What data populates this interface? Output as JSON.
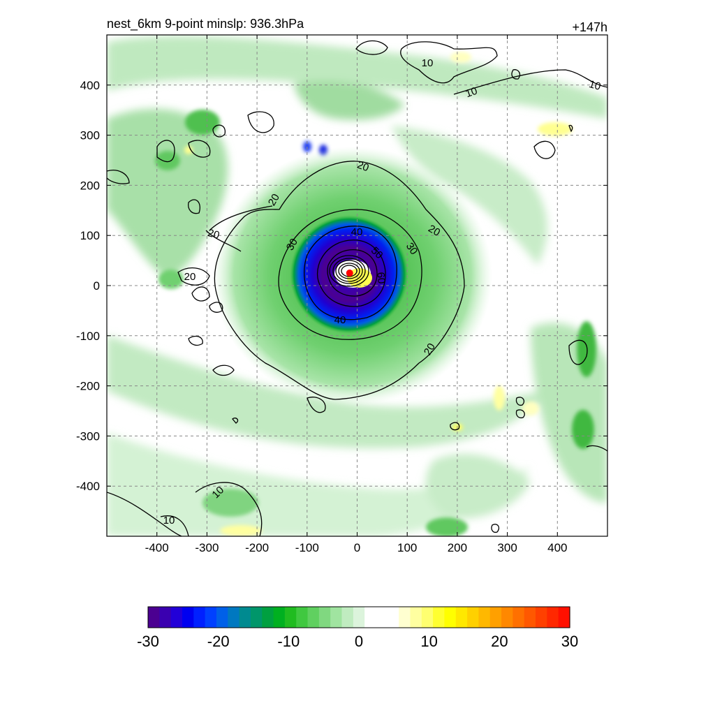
{
  "chart_data": {
    "type": "heatmap",
    "title": "nest_6km  9-point minslp: 936.3hPa",
    "time_label": "+147h",
    "x_axis": {
      "range": [
        -500,
        500
      ],
      "ticks": [
        -400,
        -300,
        -200,
        -100,
        0,
        100,
        200,
        300,
        400
      ]
    },
    "y_axis": {
      "range": [
        -500,
        500
      ],
      "ticks": [
        400,
        300,
        200,
        100,
        0,
        -100,
        -200,
        -300,
        -400
      ]
    },
    "grid": "dashed",
    "center_marker": {
      "x": -15,
      "y": 25,
      "color": "#ff0000"
    },
    "colorbar": {
      "min": -30,
      "max": 30,
      "tick_labels": [
        "-30",
        "-20",
        "-10",
        "0",
        "10",
        "20",
        "30"
      ],
      "colors": [
        "#4b0091",
        "#3a00b0",
        "#2200d8",
        "#0000f0",
        "#0020ff",
        "#0040ff",
        "#0060e8",
        "#0078c0",
        "#008a90",
        "#00966a",
        "#00a040",
        "#00b020",
        "#20bc20",
        "#40c840",
        "#60d060",
        "#80d880",
        "#a0e4a0",
        "#c0ecc0",
        "#dcf4dc",
        "#ffffff",
        "#ffffff",
        "#ffffff",
        "#ffffd0",
        "#ffffa0",
        "#ffff70",
        "#ffff30",
        "#ffff00",
        "#ffe800",
        "#ffd000",
        "#ffb800",
        "#ffa000",
        "#ff8800",
        "#ff7000",
        "#ff5800",
        "#ff4000",
        "#ff2800",
        "#ff1000"
      ]
    },
    "contours": [
      {
        "level": 10,
        "labels": [
          "10",
          "10",
          "10",
          "10",
          "10"
        ]
      },
      {
        "level": 20,
        "labels": [
          "20",
          "20",
          "20",
          "20",
          "20",
          "20"
        ]
      },
      {
        "level": 30,
        "labels": [
          "30",
          "30"
        ]
      },
      {
        "level": 40,
        "labels": [
          "40",
          "40"
        ]
      },
      {
        "level": 50,
        "labels": [
          "50"
        ]
      },
      {
        "level": 60,
        "labels": [
          "60"
        ]
      }
    ]
  }
}
